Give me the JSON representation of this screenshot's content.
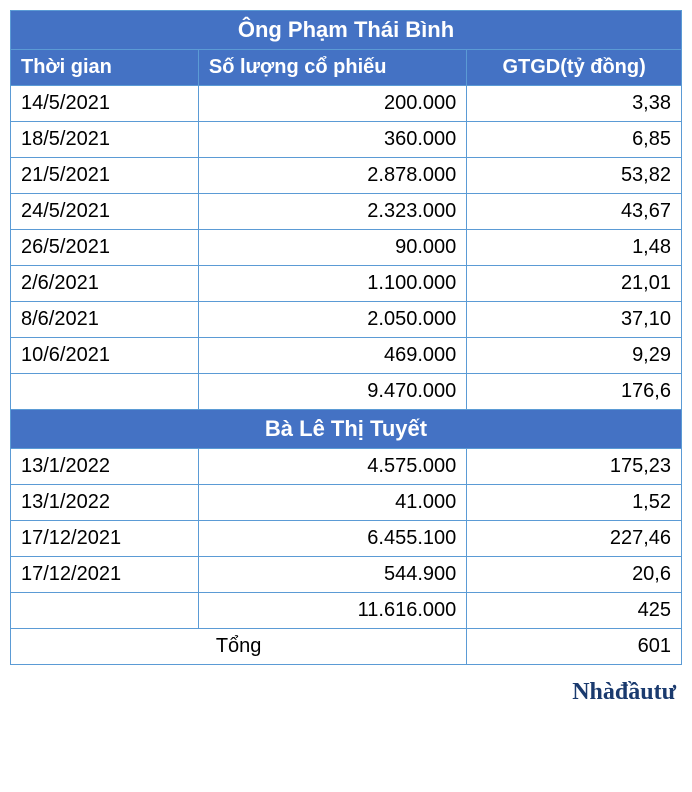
{
  "colors": {
    "header_bg": "#4472c4",
    "header_fg": "#ffffff",
    "border": "#5b9bd5",
    "text": "#000000",
    "source_color": "#1a3a6e"
  },
  "typography": {
    "base_font": "Arial",
    "base_size_pt": 15,
    "title_size_pt": 17,
    "source_font": "Georgia",
    "source_size_pt": 18,
    "source_weight": "bold"
  },
  "columns": {
    "time": "Thời gian",
    "qty": "Số lượng cổ phiếu",
    "val": "GTGD(tỷ đồng)"
  },
  "section1": {
    "title": "Ông Phạm Thái Bình",
    "rows": [
      {
        "time": "14/5/2021",
        "qty": "200.000",
        "val": "3,38"
      },
      {
        "time": "18/5/2021",
        "qty": "360.000",
        "val": "6,85"
      },
      {
        "time": "21/5/2021",
        "qty": "2.878.000",
        "val": "53,82"
      },
      {
        "time": "24/5/2021",
        "qty": "2.323.000",
        "val": "43,67"
      },
      {
        "time": "26/5/2021",
        "qty": "90.000",
        "val": "1,48"
      },
      {
        "time": "2/6/2021",
        "qty": "1.100.000",
        "val": "21,01"
      },
      {
        "time": "8/6/2021",
        "qty": "2.050.000",
        "val": "37,10"
      },
      {
        "time": "10/6/2021",
        "qty": "469.000",
        "val": "9,29"
      }
    ],
    "subtotal": {
      "time": "",
      "qty": "9.470.000",
      "val": "176,6"
    }
  },
  "section2": {
    "title": "Bà Lê Thị Tuyết",
    "rows": [
      {
        "time": "13/1/2022",
        "qty": "4.575.000",
        "val": "175,23"
      },
      {
        "time": "13/1/2022",
        "qty": "41.000",
        "val": "1,52"
      },
      {
        "time": "17/12/2021",
        "qty": "6.455.100",
        "val": "227,46"
      },
      {
        "time": "17/12/2021",
        "qty": "544.900",
        "val": "20,6"
      }
    ],
    "subtotal": {
      "time": "",
      "qty": "11.616.000",
      "val": "425"
    }
  },
  "grand_total": {
    "label": "Tổng",
    "val": "601"
  },
  "source_label": "Nhàđầutư"
}
